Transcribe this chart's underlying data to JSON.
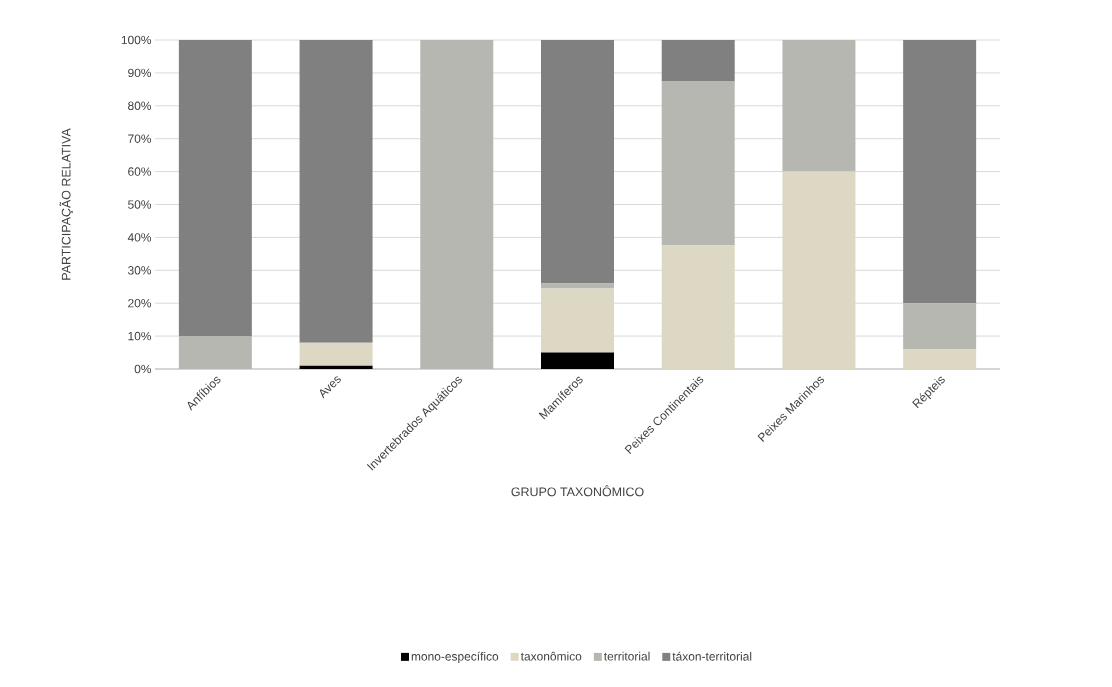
{
  "chart_data": {
    "type": "bar",
    "stacked": true,
    "xlabel": "GRUPO TAXONÔMICO",
    "ylabel": "PARTICIPAÇÃO RELATIVA",
    "categories": [
      "Anfíbios",
      "Aves",
      "Invertebrados Aquáticos",
      "Mamíferos",
      "Peixes Continentais",
      "Peixes Marinhos",
      "Répteis"
    ],
    "series": [
      {
        "name": "mono-específico",
        "color": "#000000",
        "values": [
          0,
          1,
          0,
          5,
          0,
          0,
          0
        ]
      },
      {
        "name": "taxonômico",
        "color": "#ddd8c4",
        "values": [
          0,
          7,
          0,
          19.5,
          37.5,
          60,
          6
        ]
      },
      {
        "name": "territorial",
        "color": "#b7b7b1",
        "values": [
          10,
          0,
          100,
          1.5,
          50,
          40,
          14
        ]
      },
      {
        "name": "táxon-territorial",
        "color": "#808080",
        "values": [
          90,
          92,
          0,
          74,
          12.5,
          0,
          80
        ]
      }
    ],
    "ylim": [
      0,
      100
    ],
    "yticks": [
      {
        "value": 0,
        "label": "0%"
      },
      {
        "value": 10,
        "label": "10%"
      },
      {
        "value": 20,
        "label": "20%"
      },
      {
        "value": 30,
        "label": "30%"
      },
      {
        "value": 40,
        "label": "40%"
      },
      {
        "value": 50,
        "label": "50%"
      },
      {
        "value": 60,
        "label": "60%"
      },
      {
        "value": 70,
        "label": "70%"
      },
      {
        "value": 80,
        "label": "80%"
      },
      {
        "value": 90,
        "label": "90%"
      },
      {
        "value": 100,
        "label": "100%"
      }
    ],
    "grid": "y",
    "legend": "bottom"
  }
}
